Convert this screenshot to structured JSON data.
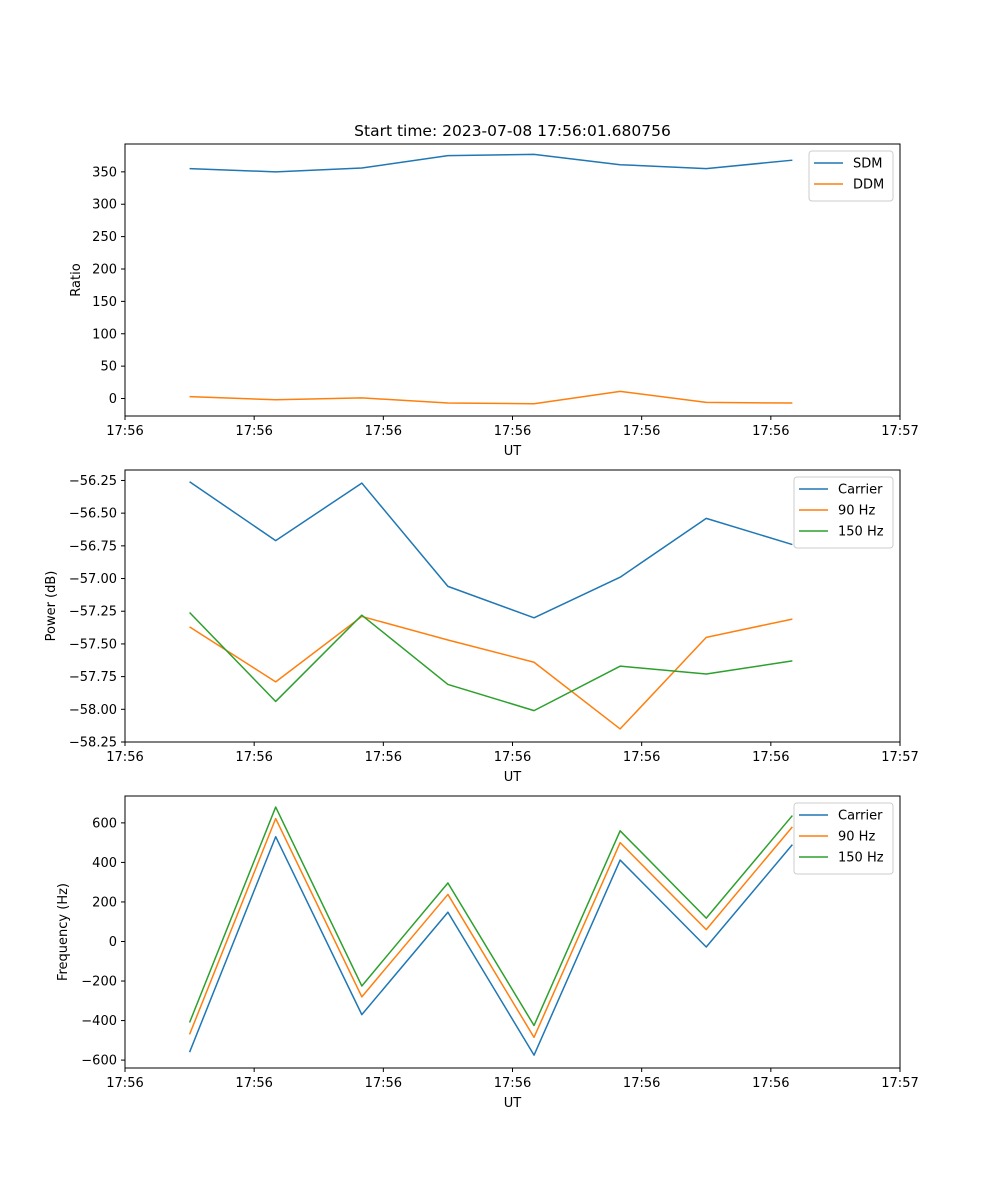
{
  "title": "Start time: 2023-07-08 17:56:01.680756",
  "chart_data": [
    {
      "type": "line",
      "name": "ratio-chart",
      "xlabel": "UT",
      "ylabel": "Ratio",
      "x": [
        0,
        1,
        2,
        3,
        4,
        5,
        6,
        7
      ],
      "xlim": [
        -0.75,
        8.25
      ],
      "x_ticks": [
        -0.75,
        0.75,
        2.25,
        3.75,
        5.25,
        6.75,
        8.25
      ],
      "x_tick_labels": [
        "17:56",
        "17:56",
        "17:56",
        "17:56",
        "17:56",
        "17:56",
        "17:57"
      ],
      "ylim": [
        -27,
        393
      ],
      "y_ticks": [
        0,
        50,
        100,
        150,
        200,
        250,
        300,
        350
      ],
      "y_tick_labels": [
        "0",
        "50",
        "100",
        "150",
        "200",
        "250",
        "300",
        "350"
      ],
      "legend_position": "upper-right",
      "series": [
        {
          "name": "SDM",
          "color": "#1f77b4",
          "values": [
            355,
            350,
            356,
            375,
            377,
            361,
            355,
            368
          ]
        },
        {
          "name": "DDM",
          "color": "#ff7f0e",
          "values": [
            3,
            -2,
            1,
            -7,
            -8,
            11,
            -6,
            -7
          ]
        }
      ]
    },
    {
      "type": "line",
      "name": "power-chart",
      "xlabel": "UT",
      "ylabel": "Power (dB)",
      "x": [
        0,
        1,
        2,
        3,
        4,
        5,
        6,
        7
      ],
      "xlim": [
        -0.75,
        8.25
      ],
      "x_ticks": [
        -0.75,
        0.75,
        2.25,
        3.75,
        5.25,
        6.75,
        8.25
      ],
      "x_tick_labels": [
        "17:56",
        "17:56",
        "17:56",
        "17:56",
        "17:56",
        "17:56",
        "17:57"
      ],
      "ylim": [
        -58.25,
        -56.17
      ],
      "y_ticks": [
        -58.25,
        -58.0,
        -57.75,
        -57.5,
        -57.25,
        -57.0,
        -56.75,
        -56.5,
        -56.25
      ],
      "y_tick_labels": [
        "−58.25",
        "−58.00",
        "−57.75",
        "−57.50",
        "−57.25",
        "−57.00",
        "−56.75",
        "−56.50",
        "−56.25"
      ],
      "legend_position": "upper-right",
      "series": [
        {
          "name": "Carrier",
          "color": "#1f77b4",
          "values": [
            -56.26,
            -56.71,
            -56.27,
            -57.06,
            -57.3,
            -56.99,
            -56.54,
            -56.74
          ]
        },
        {
          "name": "90 Hz",
          "color": "#ff7f0e",
          "values": [
            -57.37,
            -57.79,
            -57.29,
            -57.47,
            -57.64,
            -58.15,
            -57.45,
            -57.31
          ]
        },
        {
          "name": "150 Hz",
          "color": "#2ca02c",
          "values": [
            -57.26,
            -57.94,
            -57.28,
            -57.81,
            -58.01,
            -57.67,
            -57.73,
            -57.63
          ]
        }
      ]
    },
    {
      "type": "line",
      "name": "frequency-chart",
      "xlabel": "UT",
      "ylabel": "Frequency (Hz)",
      "x": [
        0,
        1,
        2,
        3,
        4,
        5,
        6,
        7
      ],
      "xlim": [
        -0.75,
        8.25
      ],
      "x_ticks": [
        -0.75,
        0.75,
        2.25,
        3.75,
        5.25,
        6.75,
        8.25
      ],
      "x_tick_labels": [
        "17:56",
        "17:56",
        "17:56",
        "17:56",
        "17:56",
        "17:56",
        "17:57"
      ],
      "ylim": [
        -640,
        736
      ],
      "y_ticks": [
        -600,
        -400,
        -200,
        0,
        200,
        400,
        600
      ],
      "y_tick_labels": [
        "−600",
        "−400",
        "−200",
        "0",
        "200",
        "400",
        "600"
      ],
      "legend_position": "upper-right",
      "series": [
        {
          "name": "Carrier",
          "color": "#1f77b4",
          "values": [
            -560,
            530,
            -370,
            148,
            -575,
            412,
            -28,
            490
          ]
        },
        {
          "name": "90 Hz",
          "color": "#ff7f0e",
          "values": [
            -470,
            622,
            -280,
            238,
            -485,
            500,
            60,
            580
          ]
        },
        {
          "name": "150 Hz",
          "color": "#2ca02c",
          "values": [
            -410,
            680,
            -225,
            296,
            -425,
            560,
            118,
            637
          ]
        }
      ]
    }
  ]
}
